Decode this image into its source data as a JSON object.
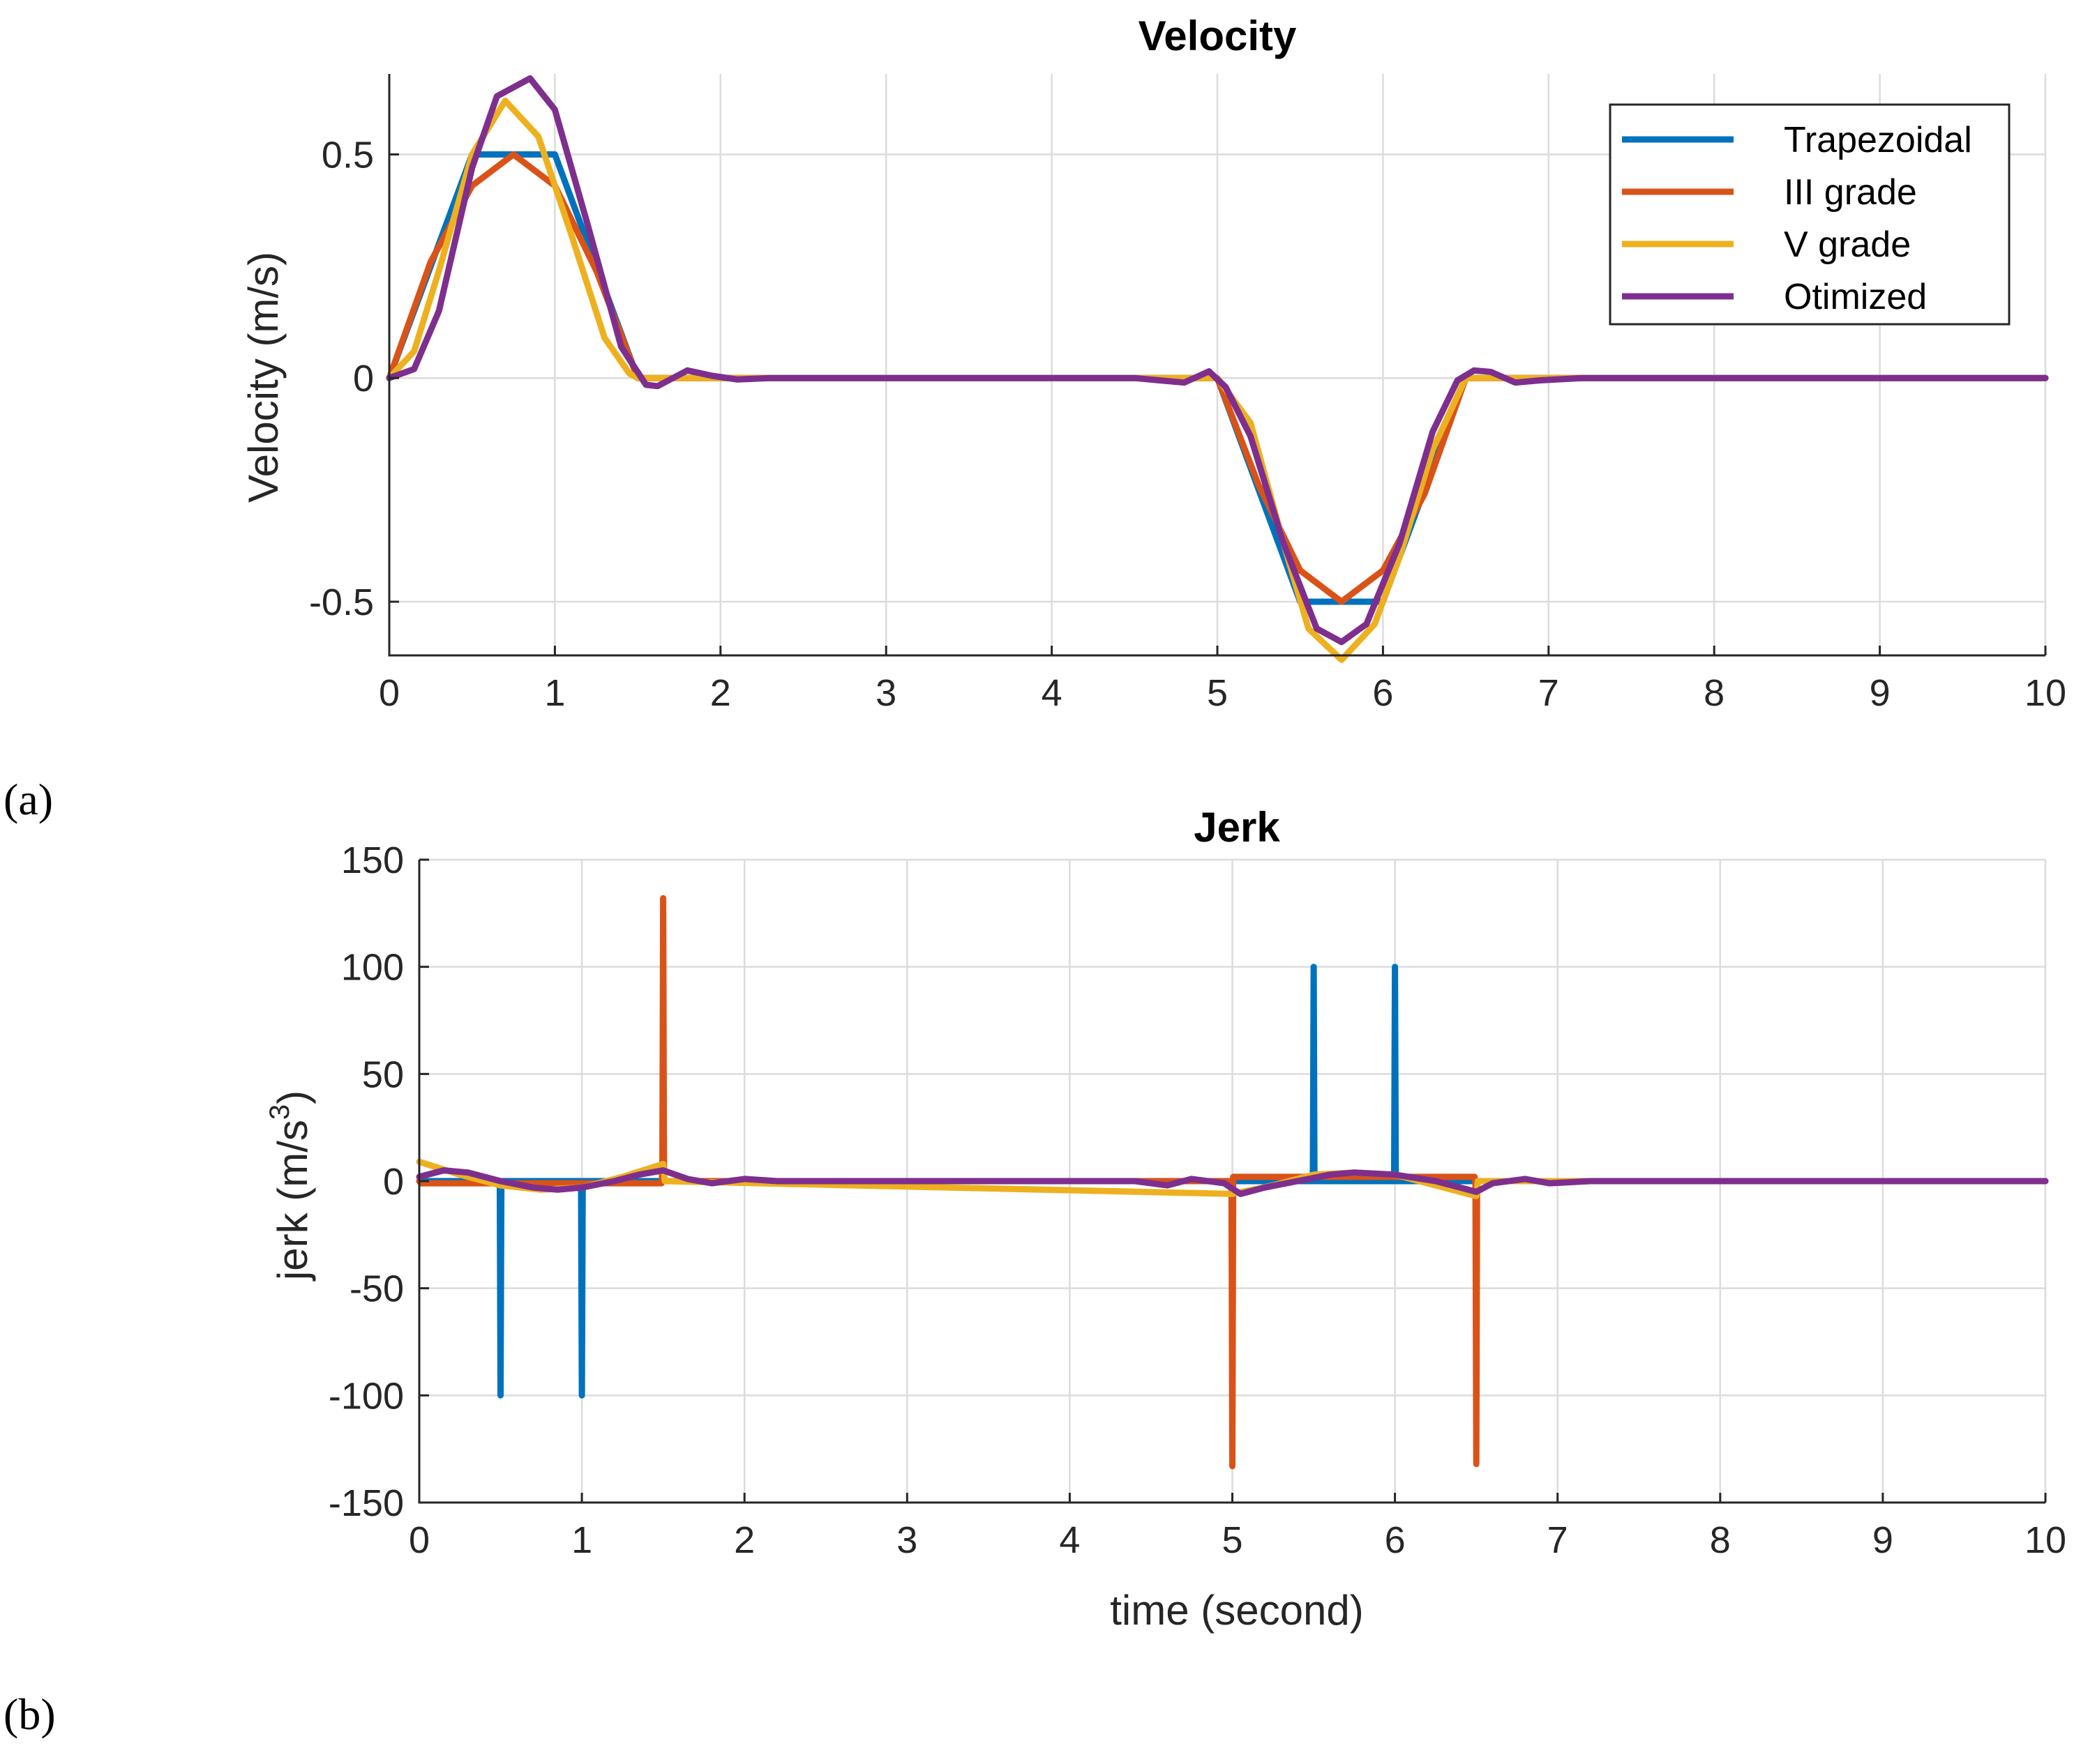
{
  "panel_labels": [
    "(a)",
    "(b)"
  ],
  "legend": {
    "entries": [
      "Trapezoidal",
      "III grade",
      "V grade",
      "Otimized"
    ]
  },
  "colors": {
    "Trapezoidal": "#0072BD",
    "III grade": "#D95319",
    "V grade": "#EDB120",
    "Otimized": "#7E2F8E"
  },
  "chart_data": [
    {
      "type": "line",
      "title": "Velocity",
      "xlabel": "",
      "ylabel": "Velocity (m/s)",
      "xlim": [
        0,
        10
      ],
      "ylim": [
        -0.62,
        0.68
      ],
      "xticks": [
        0,
        1,
        2,
        3,
        4,
        5,
        6,
        7,
        8,
        9,
        10
      ],
      "yticks": [
        -0.5,
        0,
        0.5
      ],
      "ytick_labels": [
        "-0.5",
        "0",
        "0.5"
      ],
      "grid": true,
      "legend_position": "top-right",
      "series": [
        {
          "name": "Trapezoidal",
          "x": [
            0,
            0.5,
            1.0,
            1.5,
            5.0,
            5.5,
            6.0,
            6.5,
            10
          ],
          "y": [
            0,
            0.5,
            0.5,
            0,
            0,
            -0.5,
            -0.5,
            0,
            0
          ]
        },
        {
          "name": "III grade",
          "x": [
            0,
            0.25,
            0.5,
            0.75,
            1.0,
            1.25,
            1.5,
            5.0,
            5.25,
            5.5,
            5.75,
            6.0,
            6.25,
            6.5,
            10
          ],
          "y": [
            0,
            0.26,
            0.43,
            0.5,
            0.43,
            0.24,
            0,
            0,
            -0.24,
            -0.43,
            -0.5,
            -0.43,
            -0.26,
            0,
            0
          ]
        },
        {
          "name": "V grade",
          "x": [
            0,
            0.15,
            0.3,
            0.5,
            0.7,
            0.9,
            1.1,
            1.3,
            1.45,
            1.5,
            5.0,
            5.2,
            5.4,
            5.55,
            5.75,
            5.95,
            6.1,
            6.3,
            6.5,
            10
          ],
          "y": [
            0,
            0.06,
            0.24,
            0.5,
            0.62,
            0.54,
            0.32,
            0.09,
            0.01,
            0,
            0,
            -0.1,
            -0.37,
            -0.56,
            -0.63,
            -0.55,
            -0.4,
            -0.16,
            0,
            0
          ]
        },
        {
          "name": "Otimized",
          "x": [
            0,
            0.15,
            0.3,
            0.5,
            0.65,
            0.85,
            1.0,
            1.2,
            1.4,
            1.55,
            1.62,
            1.8,
            1.95,
            2.1,
            2.3,
            4.5,
            4.65,
            4.8,
            4.95,
            5.05,
            5.2,
            5.4,
            5.6,
            5.75,
            5.9,
            6.1,
            6.3,
            6.45,
            6.55,
            6.65,
            6.8,
            6.95,
            7.2,
            10
          ],
          "y": [
            0,
            0.02,
            0.15,
            0.47,
            0.63,
            0.67,
            0.6,
            0.34,
            0.07,
            -0.015,
            -0.018,
            0.017,
            0.005,
            -0.003,
            0,
            0,
            -0.005,
            -0.01,
            0.015,
            -0.02,
            -0.13,
            -0.37,
            -0.56,
            -0.59,
            -0.55,
            -0.37,
            -0.12,
            -0.005,
            0.017,
            0.014,
            -0.01,
            -0.005,
            0,
            0
          ]
        }
      ]
    },
    {
      "type": "line",
      "title": "Jerk",
      "xlabel": "time (second)",
      "ylabel_parts": [
        "jerk (m/s",
        "3",
        ")"
      ],
      "xlim": [
        0,
        10
      ],
      "ylim": [
        -150,
        150
      ],
      "xticks": [
        0,
        1,
        2,
        3,
        4,
        5,
        6,
        7,
        8,
        9,
        10
      ],
      "yticks": [
        -150,
        -100,
        -50,
        0,
        50,
        100,
        150
      ],
      "ytick_labels": [
        "-150",
        "-100",
        "-50",
        "0",
        "50",
        "100",
        "150"
      ],
      "grid": true,
      "series": [
        {
          "name": "Trapezoidal",
          "x": [
            0,
            0.495,
            0.5,
            0.505,
            0.995,
            1.0,
            1.005,
            1.5,
            5.495,
            5.5,
            5.505,
            5.995,
            6.0,
            6.005,
            10
          ],
          "y": [
            0,
            0,
            -100,
            0,
            0,
            -100,
            0,
            0,
            0,
            100,
            0,
            0,
            100,
            0,
            0
          ]
        },
        {
          "name": "III grade",
          "x": [
            0,
            0.01,
            1.49,
            1.495,
            1.5,
            1.505,
            1.51,
            4.99,
            4.995,
            5.0,
            5.005,
            5.01,
            6.49,
            6.495,
            6.5,
            6.505,
            6.51,
            10
          ],
          "y": [
            0,
            -1,
            -1,
            5,
            132,
            2,
            0,
            0,
            0,
            -133,
            2,
            2,
            2,
            -2,
            -132,
            -2,
            0,
            0
          ]
        },
        {
          "name": "V grade",
          "x": [
            0,
            0.25,
            0.5,
            0.75,
            1.0,
            1.25,
            1.5,
            1.51,
            5.0,
            5.25,
            5.5,
            5.75,
            6.0,
            6.25,
            6.5,
            6.51,
            10
          ],
          "y": [
            9,
            3,
            -2,
            -4,
            -3,
            2,
            8,
            0,
            -6,
            -2,
            3,
            4,
            3,
            -2,
            -7,
            0,
            0
          ]
        },
        {
          "name": "Otimized",
          "x": [
            0,
            0.15,
            0.3,
            0.5,
            0.7,
            0.85,
            1.0,
            1.2,
            1.35,
            1.5,
            1.65,
            1.8,
            2.0,
            2.2,
            2.5,
            4.4,
            4.6,
            4.75,
            4.95,
            5.05,
            5.2,
            5.4,
            5.6,
            5.75,
            6.0,
            6.25,
            6.4,
            6.5,
            6.6,
            6.8,
            6.95,
            7.2,
            10
          ],
          "y": [
            2,
            5,
            4,
            0,
            -3,
            -4,
            -3,
            0,
            3,
            5,
            1,
            -1,
            1,
            0,
            0,
            0,
            -2,
            1,
            -1,
            -6,
            -3,
            0,
            3,
            4,
            3,
            0,
            -3,
            -5,
            -1,
            1,
            -1,
            0,
            0
          ]
        }
      ]
    }
  ]
}
